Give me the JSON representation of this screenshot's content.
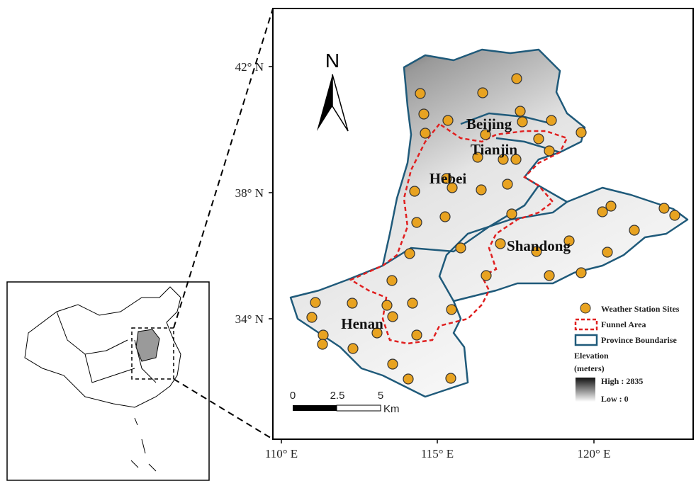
{
  "map": {
    "north_label": "N",
    "lat_labels": [
      "42° N",
      "38° N",
      "34° N"
    ],
    "lon_labels": [
      "110° E",
      "115° E",
      "120° E"
    ],
    "regions": [
      "Beijing",
      "Tianjin",
      "Hebei",
      "Shandong",
      "Henan"
    ],
    "scale": {
      "ticks": [
        "0",
        "2.5",
        "5"
      ],
      "unit": "Km"
    },
    "legend": {
      "items": [
        "Weather Station Sites",
        "Funnel Area",
        "Province Boundarise"
      ],
      "elevation_title": "Elevation",
      "elevation_unit": "(meters)",
      "high": "High : 2835",
      "low": "Low : 0"
    }
  }
}
